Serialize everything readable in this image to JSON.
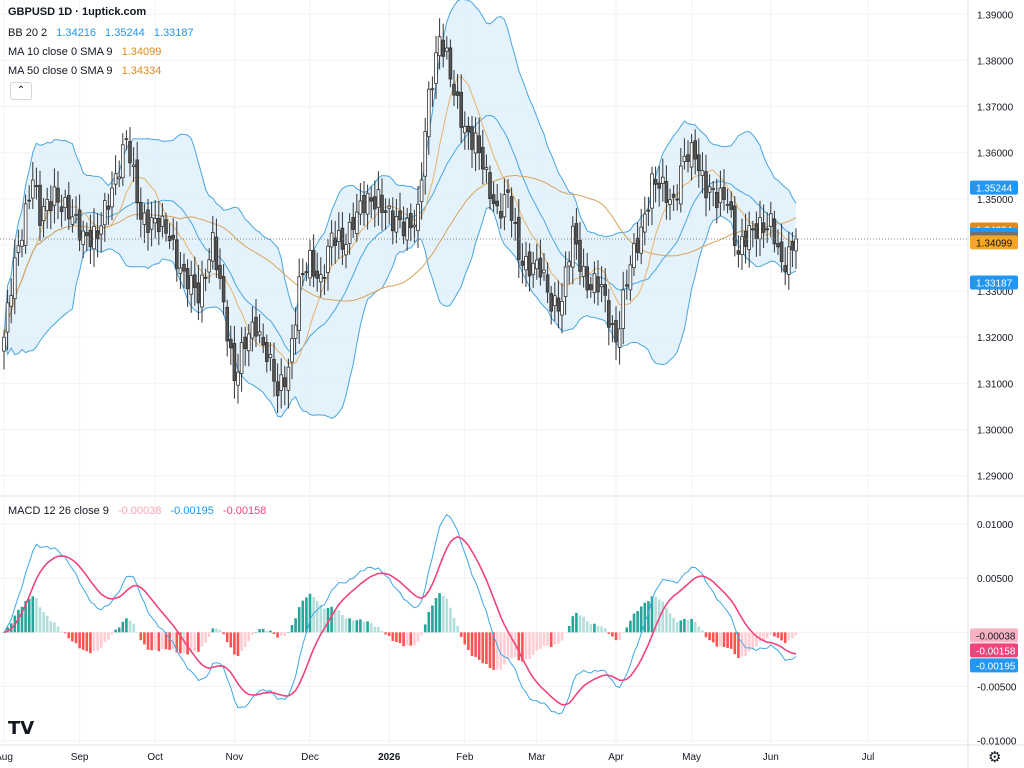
{
  "header": {
    "title": "GBPUSD 1D · 1uptick.com",
    "bb": {
      "label": "BB 20 2",
      "basis": "1.34216",
      "upper": "1.35244",
      "lower": "1.33187"
    },
    "ma10": {
      "label": "MA 10 close 0 SMA 9",
      "value": "1.34099"
    },
    "ma50": {
      "label": "MA 50 close 0 SMA 9",
      "value": "1.34334"
    },
    "macd": {
      "label": "MACD 12 26 close 9",
      "hist": "-0.00038",
      "macd": "-0.00195",
      "signal": "-0.00158"
    }
  },
  "colors": {
    "up": "#ffffff",
    "down": "#555555",
    "wick": "#333333",
    "bb_line": "#4aa6df",
    "bb_fill": "#dbeefb",
    "ma10": "#e9b36a",
    "ma50": "#d9a45a",
    "macd_line": "#3fa7e6",
    "signal_line": "#f0457c",
    "hist_up_strong": "#26a69a",
    "hist_up_weak": "#b2dfdb",
    "hist_dn_strong": "#ff5252",
    "hist_dn_weak": "#ffcdd2",
    "price_tag": "#707070",
    "tag_blue": "#2196f3",
    "tag_orange": "#f5a623",
    "tag_dark_orange": "#e08a1e",
    "macd_tag_pink": "#f6b3c3",
    "macd_tag_red": "#f0457c"
  },
  "icons": {
    "collapse": "chevron-up-icon",
    "logo": "tradingview-logo",
    "settings": "gear-icon"
  },
  "logo_text": "TV",
  "collapse_glyph": "⌃",
  "gear_glyph": "⚙",
  "chart_data": [
    {
      "type": "candlestick",
      "title": "GBPUSD 1D",
      "ylim": [
        1.2858,
        1.3931
      ],
      "y_ticks": [
        1.29,
        1.3,
        1.31,
        1.32,
        1.33,
        1.34,
        1.35,
        1.36,
        1.37,
        1.38,
        1.39
      ],
      "y_tick_labels": [
        "1.29000",
        "1.30000",
        "1.31000",
        "1.32000",
        "1.33000",
        "1.34000",
        "1.35000",
        "1.36000",
        "1.37000",
        "1.38000",
        "1.39000"
      ],
      "x_tick_labels": [
        "Aug",
        "Sep",
        "Oct",
        "Nov",
        "Dec",
        "2026",
        "Feb",
        "Mar",
        "Apr",
        "May",
        "Jun",
        "Jul"
      ],
      "x_tick_index": [
        0,
        21,
        42,
        64,
        85,
        107,
        128,
        148,
        170,
        191,
        213,
        240
      ],
      "bar_count": 240,
      "last_price": 1.34128,
      "anchors": {
        "index": [
          0,
          3,
          6,
          8,
          10,
          14,
          18,
          22,
          26,
          30,
          34,
          38,
          42,
          46,
          50,
          54,
          58,
          62,
          64,
          67,
          70,
          73,
          76,
          79,
          82,
          85,
          88,
          91,
          94,
          97,
          100,
          104,
          108,
          112,
          115,
          118,
          121,
          123,
          125,
          128,
          131,
          134,
          137,
          140,
          143,
          146,
          149,
          152,
          155,
          158,
          162,
          166,
          170,
          174,
          177,
          180,
          183,
          186,
          189,
          192,
          195,
          198,
          201,
          204,
          207,
          210,
          213,
          216,
          218,
          220
        ],
        "close": [
          1.32,
          1.335,
          1.348,
          1.355,
          1.345,
          1.352,
          1.346,
          1.343,
          1.341,
          1.353,
          1.362,
          1.347,
          1.344,
          1.343,
          1.332,
          1.33,
          1.34,
          1.322,
          1.312,
          1.318,
          1.323,
          1.317,
          1.307,
          1.314,
          1.331,
          1.336,
          1.333,
          1.341,
          1.34,
          1.346,
          1.348,
          1.351,
          1.344,
          1.345,
          1.346,
          1.372,
          1.386,
          1.38,
          1.372,
          1.366,
          1.362,
          1.354,
          1.348,
          1.35,
          1.338,
          1.336,
          1.334,
          1.328,
          1.328,
          1.342,
          1.332,
          1.33,
          1.32,
          1.335,
          1.344,
          1.353,
          1.352,
          1.35,
          1.358,
          1.36,
          1.353,
          1.349,
          1.351,
          1.338,
          1.342,
          1.345,
          1.344,
          1.335,
          1.339,
          1.3413
        ]
      },
      "sma10_last": 1.34099,
      "sma50_last": 1.34334,
      "bb": {
        "period": 20,
        "mult": 2,
        "basis_last": 1.34216,
        "upper_last": 1.35244,
        "lower_last": 1.33187
      }
    },
    {
      "type": "line",
      "title": "MACD 12 26 close 9",
      "ylim": [
        -0.0104,
        0.0125
      ],
      "y_ticks": [
        -0.01,
        -0.005,
        0.0,
        0.005,
        0.01
      ],
      "y_tick_labels": [
        "-0.01000",
        "-0.00500",
        "0.00000",
        "0.00500",
        "0.01000"
      ],
      "series": [
        {
          "name": "MACD",
          "last": -0.00195
        },
        {
          "name": "Signal",
          "last": -0.00158
        },
        {
          "name": "Histogram",
          "last": -0.00038
        }
      ],
      "tags": [
        "-0.00038",
        "-0.00158",
        "-0.00195"
      ]
    }
  ]
}
